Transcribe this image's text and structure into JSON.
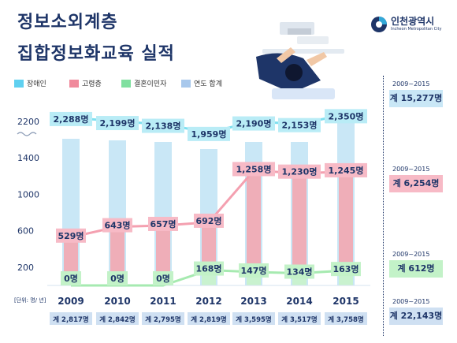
{
  "header": {
    "title_line1": "정보소외계층",
    "title_line2": "집합정보화교육 실적",
    "logo_name": "인천광역시",
    "logo_sub": "Incheon Metropolitan City"
  },
  "legend": [
    {
      "label": "장애인",
      "color": "#5fd0f0"
    },
    {
      "label": "고령층",
      "color": "#f08a9c"
    },
    {
      "label": "결혼이민자",
      "color": "#80e0a0"
    },
    {
      "label": "연도 합계",
      "color": "#a8c8ec"
    }
  ],
  "unit_label": "[단위: 명/ 년]",
  "colors": {
    "title": "#1e3568",
    "disabled_line": "#7ee0f0",
    "disabled_label_bg": "#b9ecf6",
    "elderly_line": "#f4a0b0",
    "elderly_label_bg": "#f7bac6",
    "elderly_bar": "#efaeb8",
    "immigrant_line": "#a6eab0",
    "immigrant_label_bg": "#c3f2c8",
    "total_bar": "#c9e7f6",
    "total_label_bg": "#cfe0f2",
    "divider": "#1e3568"
  },
  "chart_data": {
    "type": "line",
    "x": [
      "2009",
      "2010",
      "2011",
      "2012",
      "2013",
      "2014",
      "2015"
    ],
    "yticks": [
      200,
      600,
      1000,
      1400,
      2200
    ],
    "axis_break": true,
    "series": [
      {
        "name": "장애인",
        "values": [
          2288,
          2199,
          2138,
          1959,
          2190,
          2153,
          2350
        ],
        "labels": [
          "2,288명",
          "2,199명",
          "2,138명",
          "1,959명",
          "2,190명",
          "2,153명",
          "2,350명"
        ]
      },
      {
        "name": "고령층",
        "values": [
          529,
          643,
          657,
          692,
          1258,
          1230,
          1245
        ],
        "labels": [
          "529명",
          "643명",
          "657명",
          "692명",
          "1,258명",
          "1,230명",
          "1,245명"
        ]
      },
      {
        "name": "결혼이민자",
        "values": [
          0,
          0,
          0,
          168,
          147,
          134,
          163
        ],
        "labels": [
          "0명",
          "0명",
          "0명",
          "168명",
          "147명",
          "134명",
          "163명"
        ]
      }
    ],
    "yearly_totals": [
      "계 2,817명",
      "계 2,842명",
      "계 2,795명",
      "계 2,819명",
      "계 3,595명",
      "계 3,517명",
      "계 3,758명"
    ]
  },
  "summary": [
    {
      "period": "2009~2015",
      "total": "계 15,277명",
      "bg": "#c9e7f6"
    },
    {
      "period": "2009~2015",
      "total": "계 6,254명",
      "bg": "#f7bac6"
    },
    {
      "period": "2009~2015",
      "total": "계 612명",
      "bg": "#c3f2c8"
    },
    {
      "period": "2009~2015",
      "total": "계 22,143명",
      "bg": "#cfe0f2"
    }
  ]
}
